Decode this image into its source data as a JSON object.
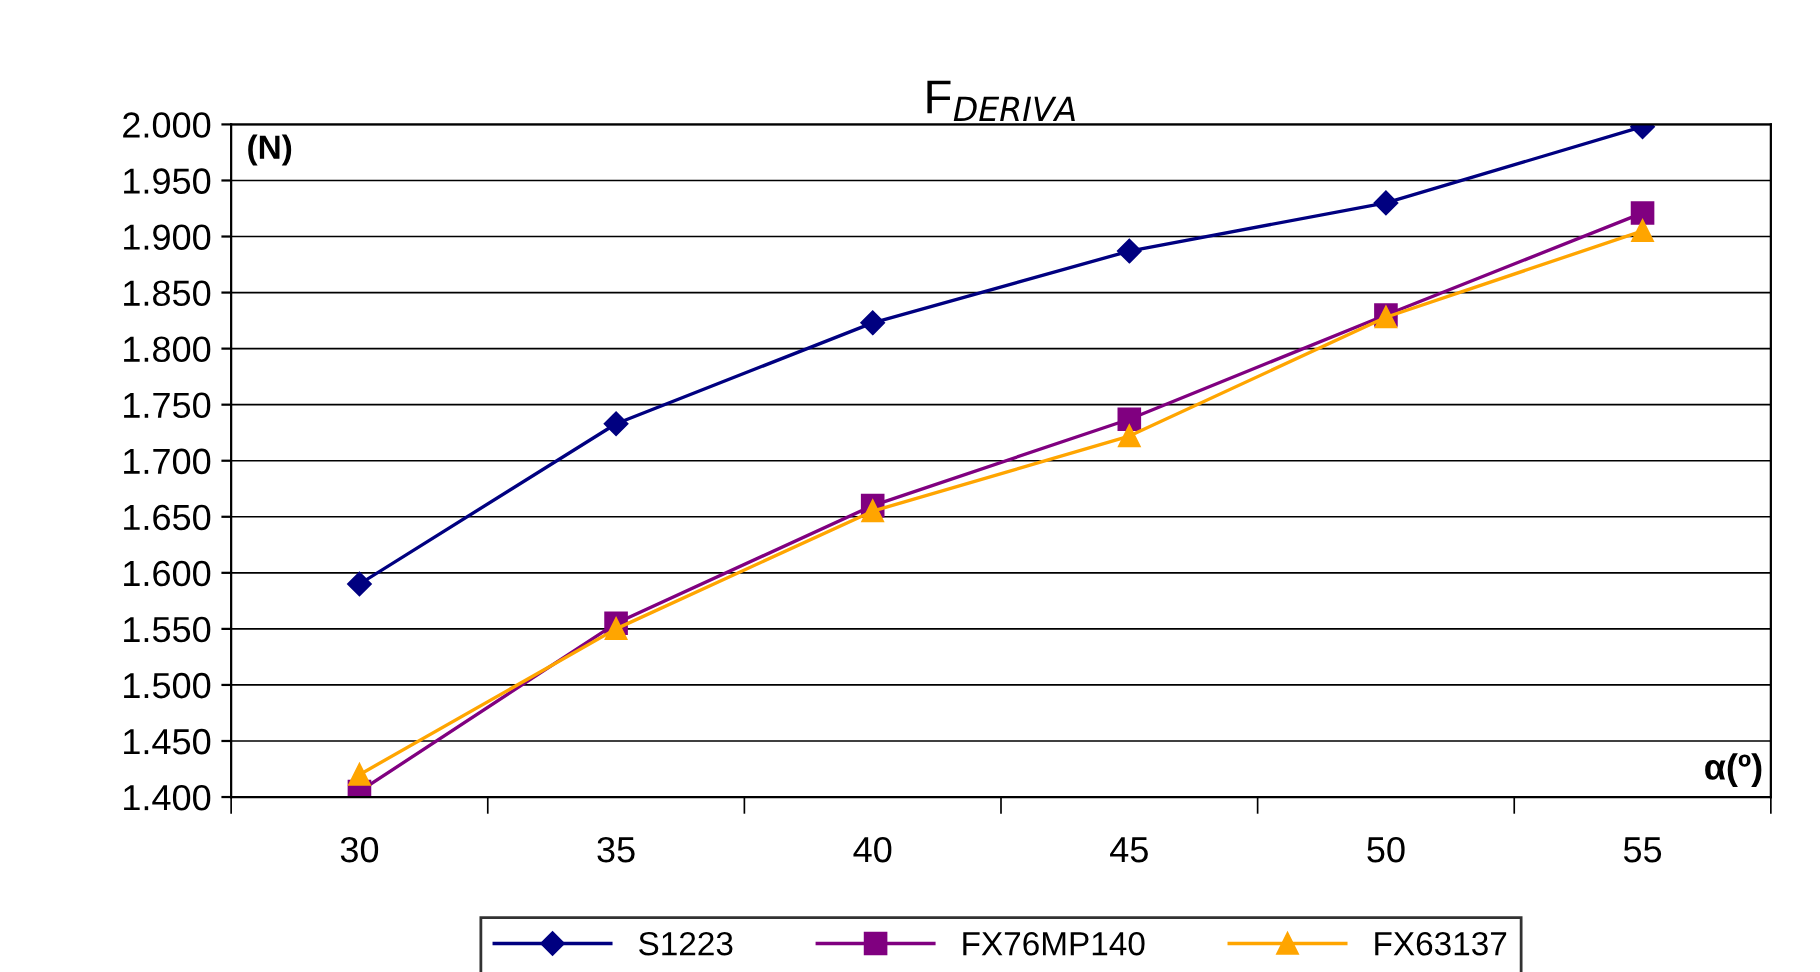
{
  "chart_data": {
    "type": "line",
    "title": "F$_{DERIVA}$",
    "categories": [
      "30",
      "35",
      "40",
      "45",
      "50",
      "55"
    ],
    "series": [
      {
        "name": "S1223",
        "color": "#000080",
        "marker": "diamond",
        "values": [
          1590,
          1733,
          1823,
          1887,
          1930,
          1998
        ]
      },
      {
        "name": "FX76MP140",
        "color": "#800080",
        "marker": "square",
        "values": [
          1405,
          1555,
          1660,
          1737,
          1830,
          1921
        ]
      },
      {
        "name": "FX63137",
        "color": "#ffa500",
        "marker": "triangle",
        "values": [
          1420,
          1550,
          1655,
          1722,
          1828,
          1905
        ]
      }
    ],
    "ylim": [
      1400,
      2000
    ],
    "yticks": [
      {
        "value": 1400,
        "label": "1.400"
      },
      {
        "value": 1450,
        "label": "1.450"
      },
      {
        "value": 1500,
        "label": "1.500"
      },
      {
        "value": 1550,
        "label": "1.550"
      },
      {
        "value": 1600,
        "label": "1.600"
      },
      {
        "value": 1650,
        "label": "1.650"
      },
      {
        "value": 1700,
        "label": "1.700"
      },
      {
        "value": 1750,
        "label": "1.750"
      },
      {
        "value": 1800,
        "label": "1.800"
      },
      {
        "value": 1850,
        "label": "1.850"
      },
      {
        "value": 1900,
        "label": "1.900"
      },
      {
        "value": 1950,
        "label": "1.950"
      },
      {
        "value": 2000,
        "label": "2.000"
      }
    ],
    "annotations": [
      "(N)",
      "α(º)"
    ],
    "grid": "y",
    "legend": "bottom",
    "line_style": "solid"
  }
}
